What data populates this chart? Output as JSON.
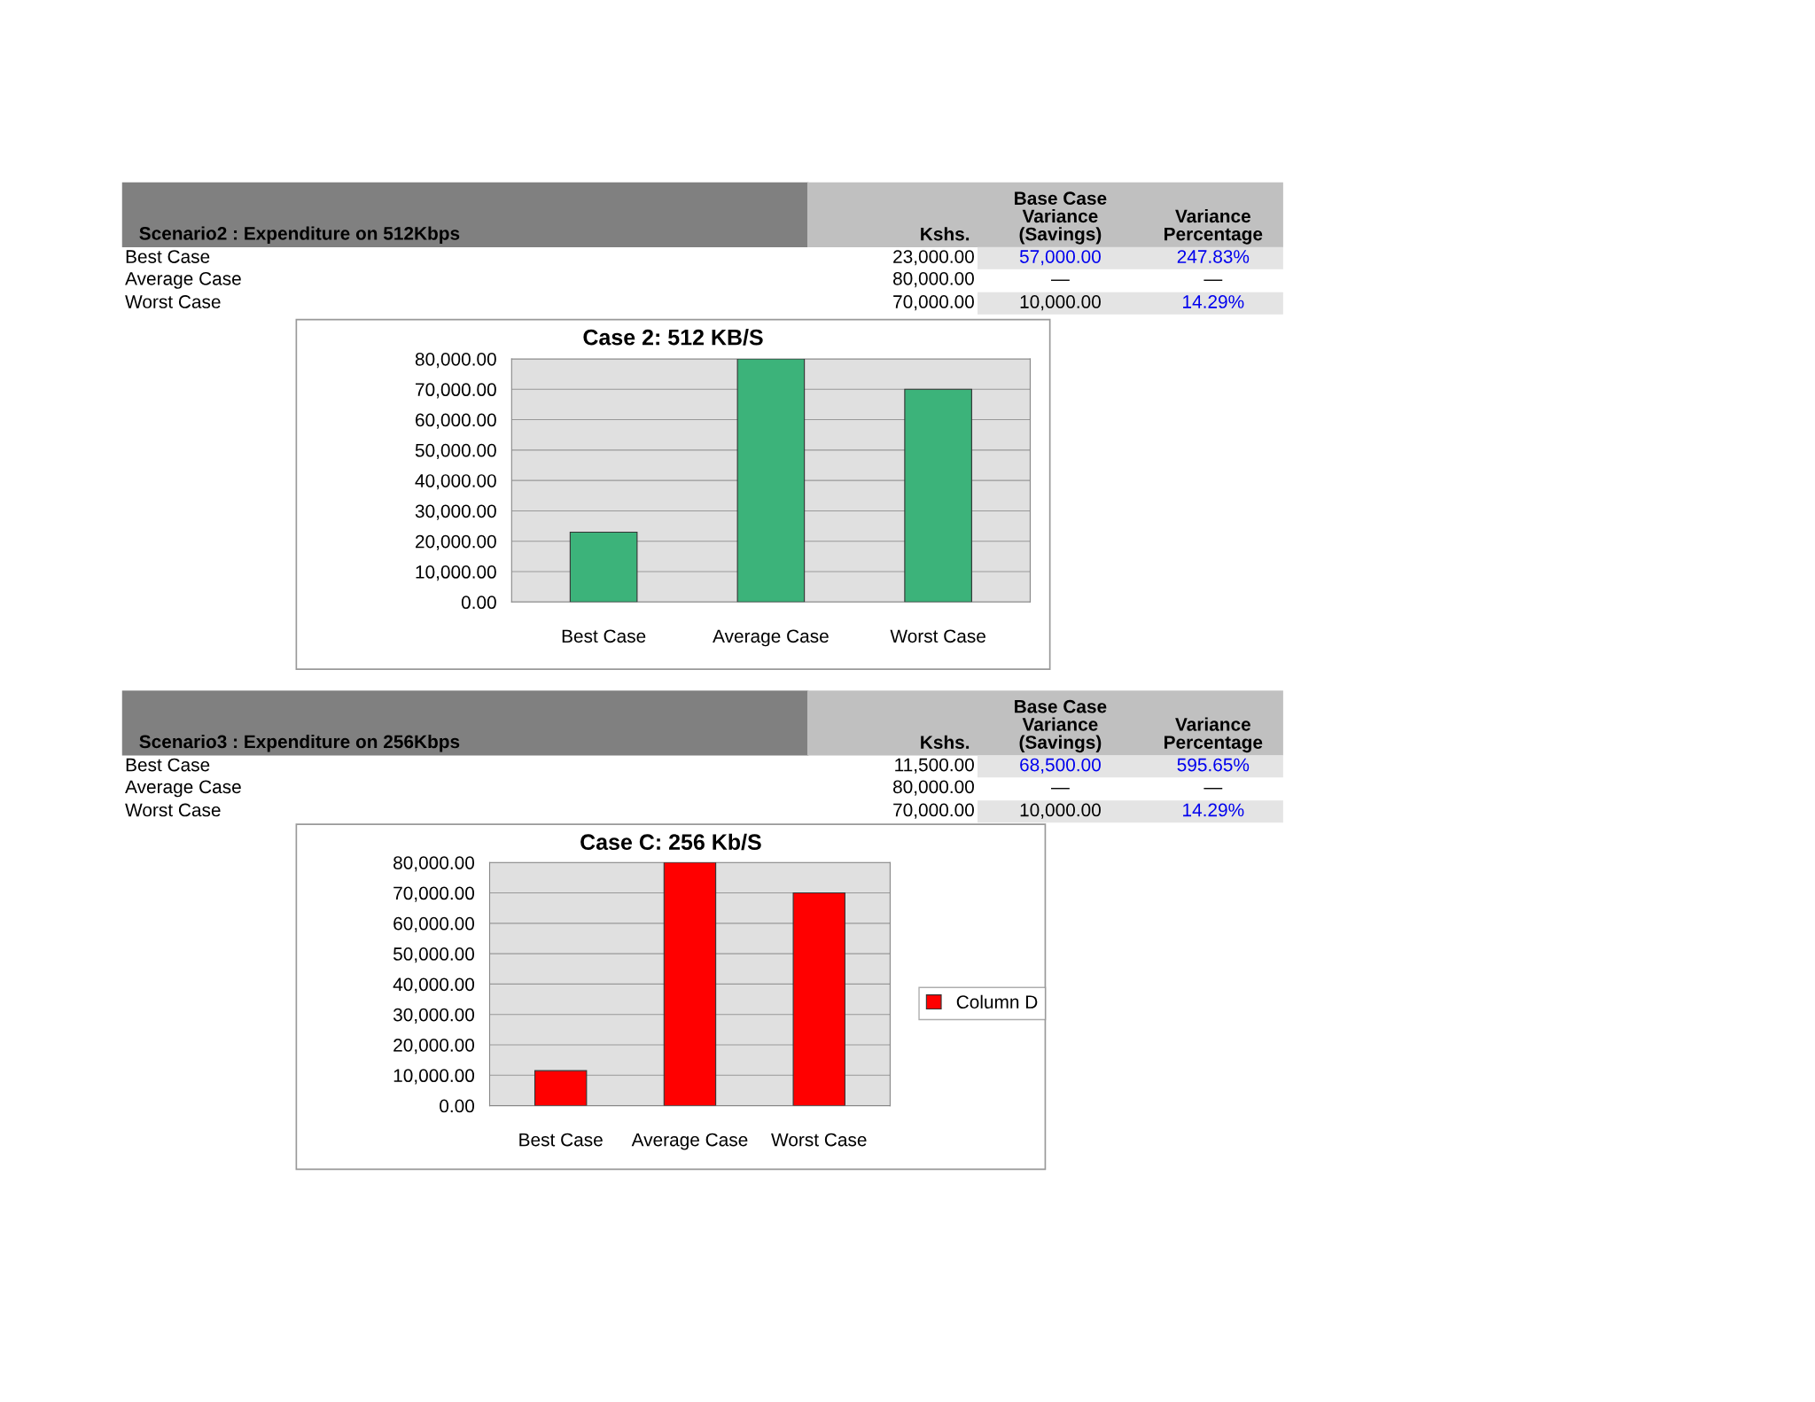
{
  "chart_data": [
    {
      "type": "bar",
      "title": "Case 2: 512 KB/S",
      "categories": [
        "Best Case",
        "Average Case",
        "Worst Case"
      ],
      "series": [
        {
          "color": "#3cb37a",
          "values": [
            23000,
            80000,
            70000
          ]
        }
      ],
      "value_labels": [
        "23,000.00",
        "80,000.00",
        "70,000.00"
      ],
      "ylim": [
        0,
        80000
      ],
      "yticks": [
        {
          "value": 0,
          "label": "0.00"
        },
        {
          "value": 10000,
          "label": "10,000.00"
        },
        {
          "value": 20000,
          "label": "20,000.00"
        },
        {
          "value": 30000,
          "label": "30,000.00"
        },
        {
          "value": 40000,
          "label": "40,000.00"
        },
        {
          "value": 50000,
          "label": "50,000.00"
        },
        {
          "value": 60000,
          "label": "60,000.00"
        },
        {
          "value": 70000,
          "label": "70,000.00"
        },
        {
          "value": 80000,
          "label": "80,000.00"
        }
      ],
      "grid": "y",
      "legend": false,
      "annotations": [
        "Scenario2 : Expenditure on 512Kbps",
        "Kshs.",
        "Base Case\nVariance\n(Savings)",
        "Variance\nPercentage",
        "57,000.00",
        "247.83%",
        "—",
        "—",
        "10,000.00",
        "14.29%"
      ]
    },
    {
      "type": "bar",
      "title": "Case C: 256 Kb/S",
      "categories": [
        "Best Case",
        "Average Case",
        "Worst Case"
      ],
      "series": [
        {
          "name": "Column D",
          "color": "#ff0000",
          "values": [
            11500,
            80000,
            70000
          ]
        }
      ],
      "value_labels": [
        "11,500.00",
        "80,000.00",
        "70,000.00"
      ],
      "ylim": [
        0,
        80000
      ],
      "yticks": [
        {
          "value": 0,
          "label": "0.00"
        },
        {
          "value": 10000,
          "label": "10,000.00"
        },
        {
          "value": 20000,
          "label": "20,000.00"
        },
        {
          "value": 30000,
          "label": "30,000.00"
        },
        {
          "value": 40000,
          "label": "40,000.00"
        },
        {
          "value": 50000,
          "label": "50,000.00"
        },
        {
          "value": 60000,
          "label": "60,000.00"
        },
        {
          "value": 70000,
          "label": "70,000.00"
        },
        {
          "value": 80000,
          "label": "80,000.00"
        }
      ],
      "grid": "y",
      "legend": "right",
      "annotations": [
        "Scenario3 : Expenditure on 256Kbps",
        "Kshs.",
        "Base Case\nVariance\n(Savings)",
        "Variance\nPercentage",
        "68,500.00",
        "595.65%",
        "—",
        "—",
        "10,000.00",
        "14.29%"
      ]
    }
  ]
}
